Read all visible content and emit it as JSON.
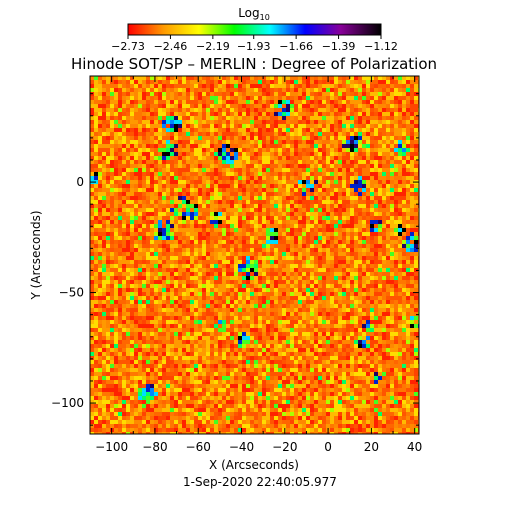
{
  "chart_data": {
    "type": "heatmap",
    "title": "Hinode SOT/SP – MERLIN : Degree of Polarization",
    "xlabel": "X (Arcseconds)",
    "ylabel": "Y (Arcseconds)",
    "date_label": "1-Sep-2020 22:40:05.977",
    "xlim": [
      -110,
      42
    ],
    "ylim": [
      -114,
      48
    ],
    "x_ticks": [
      -100,
      -80,
      -60,
      -40,
      -20,
      0,
      20,
      40
    ],
    "x_tick_labels": [
      "−100",
      "−80",
      "−60",
      "−40",
      "−20",
      "0",
      "20",
      "40"
    ],
    "y_ticks": [
      -100,
      -50,
      0
    ],
    "y_tick_labels": [
      "−100",
      "−50",
      "0"
    ],
    "grid": false,
    "colorbar": {
      "title_base": "Log",
      "title_sub": "10",
      "min": -2.73,
      "max": -1.12,
      "tick_values": [
        -2.73,
        -2.46,
        -2.19,
        -1.93,
        -1.66,
        -1.39,
        -1.12
      ],
      "tick_labels": [
        "−2.73",
        "−2.46",
        "−2.19",
        "−1.93",
        "−1.66",
        "−1.39",
        "−1.12"
      ],
      "colors": [
        "#ff0000",
        "#ffaa00",
        "#ffff00",
        "#00ff00",
        "#00ffff",
        "#0000ff",
        "#aa00aa",
        "#000000"
      ]
    },
    "colormap_note": "red → orange → yellow → green → cyan → blue → purple → black",
    "dominant_color": "#ff6000",
    "field_character": "granular noise, dominated by red/orange with yellow network and scattered green/blue/black patches"
  }
}
